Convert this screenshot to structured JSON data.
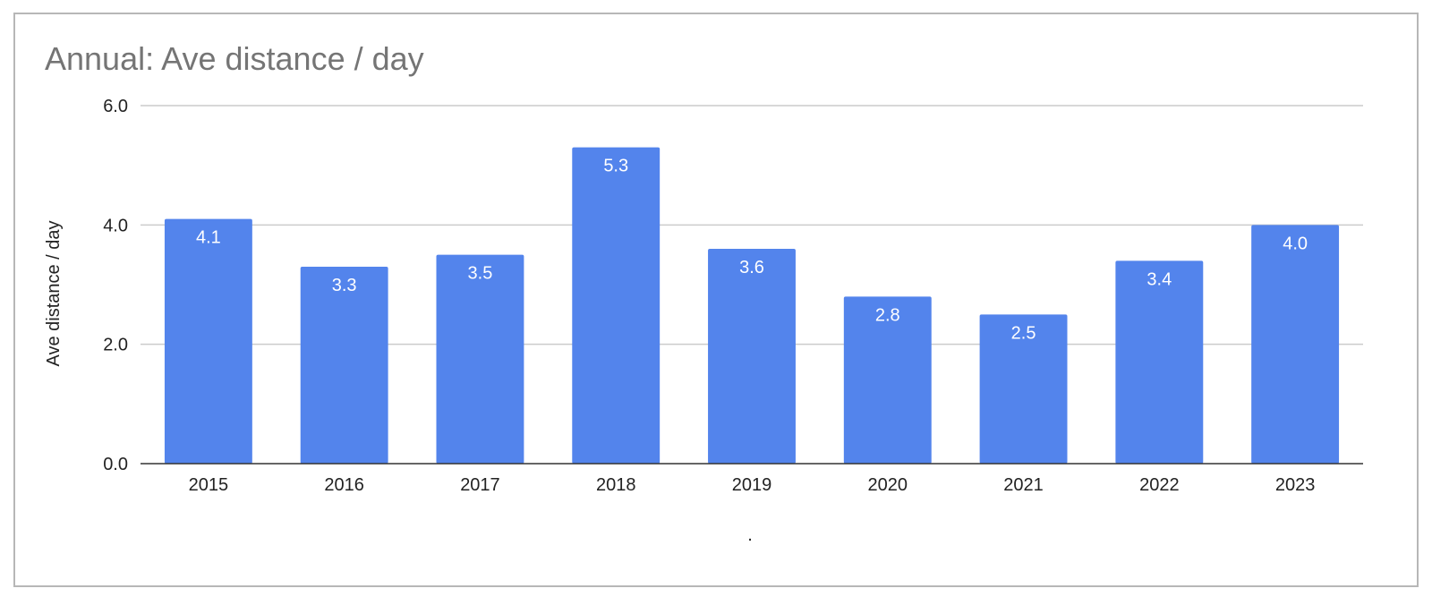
{
  "chart_data": {
    "type": "bar",
    "title": "Annual:  Ave distance / day",
    "xlabel": ".",
    "ylabel": "Ave distance / day",
    "categories": [
      "2015",
      "2016",
      "2017",
      "2018",
      "2019",
      "2020",
      "2021",
      "2022",
      "2023"
    ],
    "series": [
      {
        "values": [
          4.1,
          3.3,
          3.5,
          5.3,
          3.6,
          2.8,
          2.5,
          3.4,
          4.0
        ],
        "data_labels": [
          "4.1",
          "3.3",
          "3.5",
          "5.3",
          "3.6",
          "2.8",
          "2.5",
          "3.4",
          "4.0"
        ],
        "color": "#5384ec"
      }
    ],
    "ylim": [
      0,
      6
    ],
    "yticks": [
      0,
      2,
      4,
      6
    ],
    "ytick_labels": [
      "0.0",
      "2.0",
      "4.0",
      "6.0"
    ],
    "grid": true,
    "legend": "none"
  }
}
